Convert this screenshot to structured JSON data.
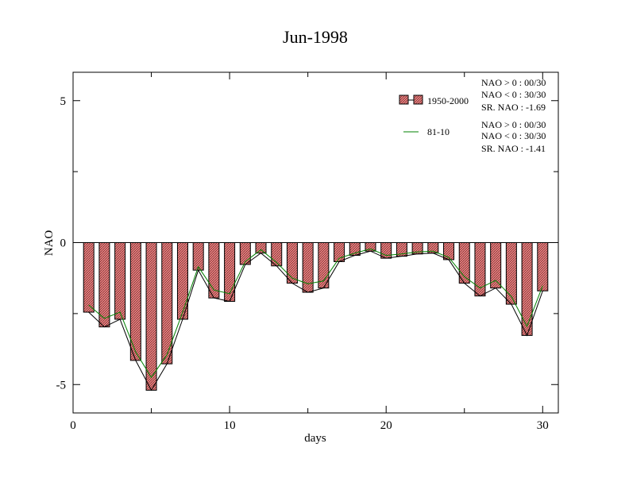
{
  "chart_data": {
    "type": "bar",
    "title": "Jun-1998",
    "xlabel": "days",
    "ylabel": "NAO",
    "xlim": [
      0,
      31
    ],
    "ylim": [
      -6,
      6
    ],
    "xticks": [
      0,
      10,
      20,
      30
    ],
    "yticks": [
      -5,
      0,
      5
    ],
    "x": [
      1,
      2,
      3,
      4,
      5,
      6,
      7,
      8,
      9,
      10,
      11,
      12,
      13,
      14,
      15,
      16,
      17,
      18,
      19,
      20,
      21,
      22,
      23,
      24,
      25,
      26,
      27,
      28,
      29,
      30
    ],
    "series": [
      {
        "name": "1950-2000",
        "kind": "bar",
        "color": "#f08080",
        "values": [
          -2.45,
          -2.97,
          -2.7,
          -4.15,
          -5.2,
          -4.27,
          -2.7,
          -0.97,
          -1.95,
          -2.07,
          -0.77,
          -0.37,
          -0.82,
          -1.43,
          -1.75,
          -1.6,
          -0.67,
          -0.45,
          -0.3,
          -0.55,
          -0.48,
          -0.4,
          -0.37,
          -0.6,
          -1.43,
          -1.88,
          -1.6,
          -2.17,
          -3.27,
          -1.7
        ]
      },
      {
        "name": "",
        "kind": "line",
        "color": "#000000",
        "values": [
          -2.45,
          -2.97,
          -2.7,
          -4.15,
          -5.2,
          -4.27,
          -2.7,
          -0.97,
          -1.95,
          -2.07,
          -0.77,
          -0.37,
          -0.82,
          -1.43,
          -1.75,
          -1.6,
          -0.67,
          -0.45,
          -0.3,
          -0.55,
          -0.48,
          -0.4,
          -0.37,
          -0.6,
          -1.43,
          -1.88,
          -1.6,
          -2.17,
          -3.27,
          -1.7
        ]
      },
      {
        "name": "81-10",
        "kind": "line",
        "color": "#008000",
        "values": [
          -2.2,
          -2.67,
          -2.45,
          -3.85,
          -4.75,
          -3.95,
          -2.45,
          -0.85,
          -1.67,
          -1.8,
          -0.67,
          -0.25,
          -0.7,
          -1.25,
          -1.45,
          -1.35,
          -0.55,
          -0.37,
          -0.22,
          -0.45,
          -0.4,
          -0.33,
          -0.3,
          -0.52,
          -1.2,
          -1.6,
          -1.33,
          -1.9,
          -2.95,
          -1.52
        ]
      }
    ],
    "legend": {
      "placement": "top-right"
    },
    "stats": [
      {
        "lines": [
          "NAO > 0 : 00/30",
          "NAO < 0 : 30/30",
          "SR. NAO : -1.69"
        ]
      },
      {
        "lines": [
          "NAO > 0 : 00/30",
          "NAO < 0 : 30/30",
          "SR. NAO : -1.41"
        ]
      }
    ]
  }
}
